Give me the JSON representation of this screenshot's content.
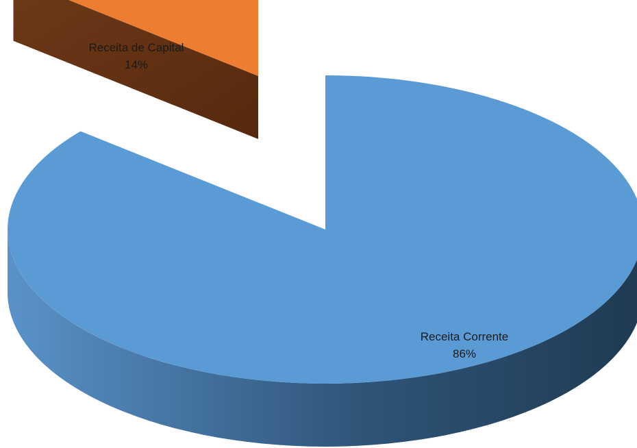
{
  "chart_data": {
    "type": "pie",
    "style": "3d",
    "slices": [
      {
        "name": "Receita Corrente",
        "value": 86,
        "label": "86%",
        "color": "#5b9bd5",
        "exploded": false
      },
      {
        "name": "Receita de Capital",
        "value": 14,
        "label": "14%",
        "color": "#ed7d31",
        "exploded": true
      }
    ]
  }
}
